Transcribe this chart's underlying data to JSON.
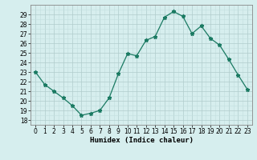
{
  "x": [
    0,
    1,
    2,
    3,
    4,
    5,
    6,
    7,
    8,
    9,
    10,
    11,
    12,
    13,
    14,
    15,
    16,
    17,
    18,
    19,
    20,
    21,
    22,
    23
  ],
  "y": [
    23,
    21.7,
    21.0,
    20.3,
    19.5,
    18.5,
    18.7,
    19.0,
    20.3,
    22.8,
    24.9,
    24.7,
    26.3,
    26.7,
    28.7,
    29.3,
    28.8,
    27.0,
    27.8,
    26.5,
    25.8,
    24.3,
    22.7,
    21.2
  ],
  "line_color": "#1a7a62",
  "marker": "*",
  "marker_size": 3.5,
  "bg_color": "#d6eeee",
  "grid_major_color": "#b0cccc",
  "grid_minor_color": "#c4dede",
  "xlabel": "Humidex (Indice chaleur)",
  "ylim": [
    17.5,
    30.0
  ],
  "xlim": [
    -0.5,
    23.5
  ],
  "yticks": [
    18,
    19,
    20,
    21,
    22,
    23,
    24,
    25,
    26,
    27,
    28,
    29
  ],
  "xticks": [
    0,
    1,
    2,
    3,
    4,
    5,
    6,
    7,
    8,
    9,
    10,
    11,
    12,
    13,
    14,
    15,
    16,
    17,
    18,
    19,
    20,
    21,
    22,
    23
  ],
  "tick_font_size": 5.5,
  "label_font_size": 6.5
}
